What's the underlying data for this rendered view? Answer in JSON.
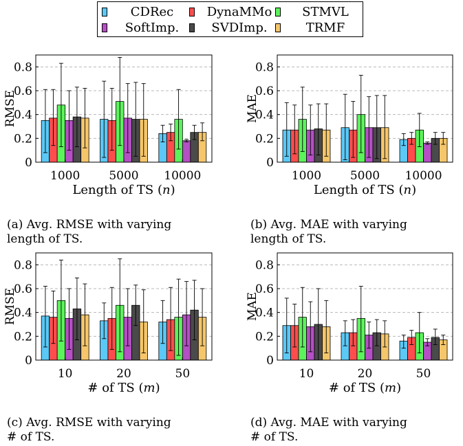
{
  "legend": [
    {
      "name": "CDRec",
      "color": "#5bc8f5"
    },
    {
      "name": "DynaMMo",
      "color": "#ff4d4d"
    },
    {
      "name": "STMVL",
      "color": "#5cf25c"
    },
    {
      "name": "SoftImp.",
      "color": "#b44fc4"
    },
    {
      "name": "SVDImp.",
      "color": "#4a4a4a"
    },
    {
      "name": "TRMF",
      "color": "#f5c66a"
    }
  ],
  "captions": {
    "a": [
      "(a) Avg. RMSE with varying",
      "length of TS."
    ],
    "b": [
      "(b) Avg.  MAE with varying",
      "length of TS."
    ],
    "c": [
      "(c) Avg. RMSE with varying",
      "# of TS."
    ],
    "d": [
      "(d) Avg.  MAE with varying",
      "# of TS."
    ]
  },
  "chart_data": [
    {
      "id": "a",
      "type": "bar",
      "ylabel": "RMSE",
      "xlabel": "Length of TS (n)",
      "xlabel_var": "n",
      "categories": [
        "1000",
        "5000",
        "10000"
      ],
      "ylim": [
        0,
        0.9
      ],
      "yticks": [
        "0",
        "0.2",
        "0.4",
        "0.6",
        "0.8"
      ],
      "grid": true,
      "series": [
        {
          "name": "CDRec",
          "values": [
            0.35,
            0.36,
            0.24
          ],
          "err_low": [
            0.08,
            0.04,
            0.17
          ],
          "err_high": [
            0.61,
            0.68,
            0.31
          ]
        },
        {
          "name": "DynaMMo",
          "values": [
            0.37,
            0.35,
            0.25
          ],
          "err_low": [
            0.14,
            0.1,
            0.18
          ],
          "err_high": [
            0.61,
            0.62,
            0.32
          ]
        },
        {
          "name": "STMVL",
          "values": [
            0.48,
            0.51,
            0.36
          ],
          "err_low": [
            0.13,
            0.14,
            0.11
          ],
          "err_high": [
            0.83,
            0.88,
            0.61
          ]
        },
        {
          "name": "SoftImp.",
          "values": [
            0.35,
            0.37,
            0.18
          ],
          "err_low": [
            0.1,
            0.08,
            0.17
          ],
          "err_high": [
            0.6,
            0.66,
            0.19
          ]
        },
        {
          "name": "SVDImp.",
          "values": [
            0.38,
            0.36,
            0.25
          ],
          "err_low": [
            0.13,
            0.05,
            0.19
          ],
          "err_high": [
            0.63,
            0.67,
            0.31
          ]
        },
        {
          "name": "TRMF",
          "values": [
            0.37,
            0.36,
            0.25
          ],
          "err_low": [
            0.12,
            0.05,
            0.18
          ],
          "err_high": [
            0.62,
            0.66,
            0.33
          ]
        }
      ]
    },
    {
      "id": "b",
      "type": "bar",
      "ylabel": "MAE",
      "xlabel": "Length of TS (n)",
      "xlabel_var": "n",
      "categories": [
        "1000",
        "5000",
        "10000"
      ],
      "ylim": [
        0,
        0.9
      ],
      "yticks": [
        "0",
        "0.2",
        "0.4",
        "0.6",
        "0.8"
      ],
      "grid": true,
      "series": [
        {
          "name": "CDRec",
          "values": [
            0.27,
            0.29,
            0.19
          ],
          "err_low": [
            0.05,
            0.02,
            0.14
          ],
          "err_high": [
            0.5,
            0.57,
            0.24
          ]
        },
        {
          "name": "DynaMMo",
          "values": [
            0.27,
            0.27,
            0.2
          ],
          "err_low": [
            0.07,
            0.04,
            0.15
          ],
          "err_high": [
            0.48,
            0.51,
            0.25
          ]
        },
        {
          "name": "STMVL",
          "values": [
            0.36,
            0.4,
            0.27
          ],
          "err_low": [
            0.09,
            0.08,
            0.13
          ],
          "err_high": [
            0.63,
            0.73,
            0.41
          ]
        },
        {
          "name": "SoftImp.",
          "values": [
            0.27,
            0.29,
            0.16
          ],
          "err_low": [
            0.06,
            0.04,
            0.15
          ],
          "err_high": [
            0.48,
            0.55,
            0.17
          ]
        },
        {
          "name": "SVDImp.",
          "values": [
            0.28,
            0.29,
            0.2
          ],
          "err_low": [
            0.06,
            0.03,
            0.15
          ],
          "err_high": [
            0.49,
            0.56,
            0.25
          ]
        },
        {
          "name": "TRMF",
          "values": [
            0.27,
            0.29,
            0.2
          ],
          "err_low": [
            0.05,
            0.03,
            0.15
          ],
          "err_high": [
            0.49,
            0.56,
            0.25
          ]
        }
      ]
    },
    {
      "id": "c",
      "type": "bar",
      "ylabel": "RMSE",
      "xlabel": "# of TS (m)",
      "xlabel_var": "m",
      "categories": [
        "10",
        "20",
        "50"
      ],
      "ylim": [
        0,
        0.9
      ],
      "yticks": [
        "0",
        "0.2",
        "0.4",
        "0.6",
        "0.8"
      ],
      "grid": true,
      "series": [
        {
          "name": "CDRec",
          "values": [
            0.37,
            0.33,
            0.32
          ],
          "err_low": [
            0.11,
            0.18,
            0.14
          ],
          "err_high": [
            0.62,
            0.48,
            0.5
          ]
        },
        {
          "name": "DynaMMo",
          "values": [
            0.36,
            0.35,
            0.34
          ],
          "err_low": [
            0.14,
            0.09,
            0.08
          ],
          "err_high": [
            0.58,
            0.61,
            0.61
          ]
        },
        {
          "name": "STMVL",
          "values": [
            0.5,
            0.46,
            0.36
          ],
          "err_low": [
            0.16,
            0.07,
            0.04
          ],
          "err_high": [
            0.84,
            0.85,
            0.68
          ]
        },
        {
          "name": "SoftImp.",
          "values": [
            0.35,
            0.36,
            0.38
          ],
          "err_low": [
            0.09,
            0.12,
            0.12
          ],
          "err_high": [
            0.6,
            0.6,
            0.66
          ]
        },
        {
          "name": "SVDImp.",
          "values": [
            0.43,
            0.46,
            0.42
          ],
          "err_low": [
            0.17,
            0.29,
            0.17
          ],
          "err_high": [
            0.69,
            0.63,
            0.67
          ]
        },
        {
          "name": "TRMF",
          "values": [
            0.38,
            0.32,
            0.36
          ],
          "err_low": [
            0.12,
            0.06,
            0.12
          ],
          "err_high": [
            0.64,
            0.59,
            0.6
          ]
        }
      ]
    },
    {
      "id": "d",
      "type": "bar",
      "ylabel": "MAE",
      "xlabel": "# of TS (m)",
      "xlabel_var": "m",
      "categories": [
        "10",
        "20",
        "50"
      ],
      "ylim": [
        0,
        0.9
      ],
      "yticks": [
        "0",
        "0.2",
        "0.4",
        "0.6",
        "0.8"
      ],
      "grid": true,
      "series": [
        {
          "name": "CDRec",
          "values": [
            0.29,
            0.23,
            0.16
          ],
          "err_low": [
            0.06,
            0.12,
            0.1
          ],
          "err_high": [
            0.52,
            0.33,
            0.21
          ]
        },
        {
          "name": "DynaMMo",
          "values": [
            0.29,
            0.23,
            0.19
          ],
          "err_low": [
            0.11,
            0.12,
            0.13
          ],
          "err_high": [
            0.47,
            0.34,
            0.25
          ]
        },
        {
          "name": "STMVL",
          "values": [
            0.36,
            0.35,
            0.23
          ],
          "err_low": [
            0.11,
            0.07,
            0.06
          ],
          "err_high": [
            0.61,
            0.62,
            0.4
          ]
        },
        {
          "name": "SoftImp.",
          "values": [
            0.28,
            0.21,
            0.15
          ],
          "err_low": [
            0.07,
            0.1,
            0.12
          ],
          "err_high": [
            0.49,
            0.32,
            0.18
          ]
        },
        {
          "name": "SVDImp.",
          "values": [
            0.3,
            0.23,
            0.19
          ],
          "err_low": [
            0.0,
            0.12,
            0.13
          ],
          "err_high": [
            0.6,
            0.34,
            0.26
          ]
        },
        {
          "name": "TRMF",
          "values": [
            0.28,
            0.22,
            0.17
          ],
          "err_low": [
            0.06,
            0.11,
            0.13
          ],
          "err_high": [
            0.5,
            0.33,
            0.21
          ]
        }
      ]
    }
  ]
}
